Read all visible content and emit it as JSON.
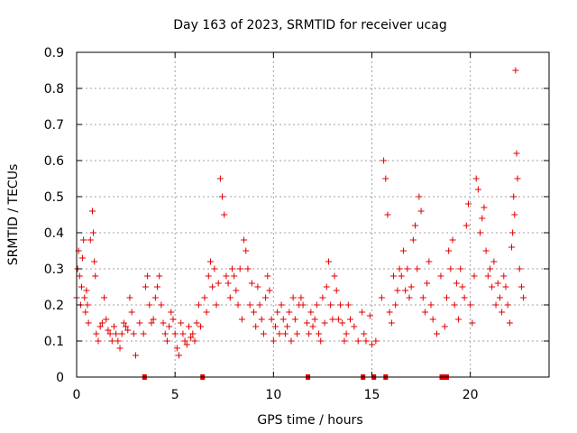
{
  "chart_data": {
    "type": "scatter",
    "title": "Day 163 of 2023, SRMTID for receiver ucag",
    "xlabel": "GPS time / hours",
    "ylabel": "SRMTID / TECUs",
    "xlim": [
      0,
      24
    ],
    "ylim": [
      0,
      0.9
    ],
    "xticks": [
      0,
      5,
      10,
      15,
      20
    ],
    "xtick_labels": [
      "0",
      "5",
      "10",
      "15",
      "20"
    ],
    "yticks": [
      0,
      0.1,
      0.2,
      0.3,
      0.4,
      0.5,
      0.6,
      0.7,
      0.8,
      0.9
    ],
    "ytick_labels": [
      "0",
      "0.1",
      "0.2",
      "0.3",
      "0.4",
      "0.5",
      "0.6",
      "0.7",
      "0.8",
      "0.9"
    ],
    "grid": true,
    "marker": "+",
    "color": "#e00000",
    "series": [
      {
        "name": "SRMTID",
        "x": [
          0.0,
          0.05,
          0.1,
          0.15,
          0.2,
          0.25,
          0.3,
          0.35,
          0.4,
          0.45,
          0.5,
          0.55,
          0.6,
          0.7,
          0.8,
          0.85,
          0.9,
          0.95,
          1.0,
          1.1,
          1.2,
          1.3,
          1.4,
          1.5,
          1.6,
          1.7,
          1.8,
          1.9,
          2.0,
          2.1,
          2.2,
          2.3,
          2.4,
          2.5,
          2.6,
          2.7,
          2.8,
          2.9,
          3.0,
          3.2,
          3.4,
          3.5,
          3.6,
          3.7,
          3.8,
          3.9,
          4.0,
          4.1,
          4.2,
          4.3,
          4.4,
          4.5,
          4.6,
          4.7,
          4.8,
          4.9,
          5.0,
          5.1,
          5.2,
          5.3,
          5.4,
          5.5,
          5.6,
          5.7,
          5.8,
          5.9,
          6.0,
          6.1,
          6.2,
          6.3,
          6.5,
          6.6,
          6.7,
          6.8,
          6.9,
          7.0,
          7.1,
          7.2,
          7.3,
          7.4,
          7.5,
          7.6,
          7.7,
          7.8,
          7.9,
          8.0,
          8.1,
          8.2,
          8.3,
          8.4,
          8.5,
          8.6,
          8.7,
          8.8,
          8.9,
          9.0,
          9.1,
          9.2,
          9.3,
          9.4,
          9.5,
          9.6,
          9.7,
          9.8,
          9.9,
          10.0,
          10.1,
          10.2,
          10.3,
          10.4,
          10.5,
          10.6,
          10.7,
          10.8,
          10.9,
          11.0,
          11.1,
          11.2,
          11.3,
          11.4,
          11.5,
          11.7,
          11.8,
          11.9,
          12.0,
          12.1,
          12.2,
          12.3,
          12.4,
          12.5,
          12.6,
          12.7,
          12.8,
          12.9,
          13.0,
          13.1,
          13.2,
          13.3,
          13.4,
          13.5,
          13.6,
          13.7,
          13.8,
          13.9,
          14.1,
          14.3,
          14.5,
          14.6,
          14.7,
          14.9,
          15.0,
          15.2,
          15.5,
          15.6,
          15.7,
          15.8,
          15.9,
          16.0,
          16.1,
          16.2,
          16.3,
          16.4,
          16.5,
          16.6,
          16.7,
          16.8,
          16.9,
          17.0,
          17.1,
          17.2,
          17.3,
          17.4,
          17.5,
          17.6,
          17.7,
          17.8,
          17.9,
          18.0,
          18.1,
          18.3,
          18.5,
          18.7,
          18.8,
          18.9,
          19.0,
          19.1,
          19.2,
          19.3,
          19.4,
          19.5,
          19.6,
          19.7,
          19.8,
          19.9,
          20.0,
          20.1,
          20.2,
          20.3,
          20.4,
          20.5,
          20.6,
          20.7,
          20.8,
          20.9,
          21.0,
          21.1,
          21.2,
          21.3,
          21.4,
          21.5,
          21.6,
          21.7,
          21.8,
          21.9,
          22.0,
          22.1,
          22.15,
          22.2,
          22.25,
          22.3,
          22.35,
          22.4,
          22.5,
          22.6,
          22.7
        ],
        "y": [
          0.22,
          0.3,
          0.35,
          0.28,
          0.2,
          0.25,
          0.33,
          0.38,
          0.22,
          0.18,
          0.24,
          0.2,
          0.15,
          0.38,
          0.46,
          0.4,
          0.32,
          0.28,
          0.12,
          0.1,
          0.14,
          0.15,
          0.22,
          0.16,
          0.13,
          0.12,
          0.1,
          0.14,
          0.12,
          0.1,
          0.08,
          0.12,
          0.15,
          0.14,
          0.13,
          0.22,
          0.18,
          0.12,
          0.06,
          0.15,
          0.12,
          0.25,
          0.28,
          0.2,
          0.15,
          0.16,
          0.22,
          0.25,
          0.28,
          0.2,
          0.15,
          0.12,
          0.1,
          0.14,
          0.18,
          0.16,
          0.12,
          0.08,
          0.06,
          0.15,
          0.12,
          0.1,
          0.09,
          0.14,
          0.11,
          0.12,
          0.1,
          0.15,
          0.2,
          0.14,
          0.22,
          0.18,
          0.28,
          0.32,
          0.25,
          0.3,
          0.2,
          0.26,
          0.55,
          0.5,
          0.45,
          0.28,
          0.26,
          0.22,
          0.3,
          0.28,
          0.24,
          0.2,
          0.3,
          0.16,
          0.38,
          0.35,
          0.3,
          0.2,
          0.26,
          0.18,
          0.14,
          0.25,
          0.2,
          0.16,
          0.12,
          0.22,
          0.28,
          0.24,
          0.16,
          0.1,
          0.14,
          0.18,
          0.12,
          0.2,
          0.16,
          0.12,
          0.14,
          0.18,
          0.1,
          0.22,
          0.16,
          0.12,
          0.2,
          0.22,
          0.2,
          0.15,
          0.12,
          0.18,
          0.14,
          0.16,
          0.2,
          0.12,
          0.1,
          0.22,
          0.15,
          0.25,
          0.32,
          0.2,
          0.16,
          0.28,
          0.24,
          0.16,
          0.2,
          0.15,
          0.1,
          0.12,
          0.2,
          0.16,
          0.14,
          0.1,
          0.18,
          0.12,
          0.1,
          0.17,
          0.09,
          0.1,
          0.22,
          0.6,
          0.55,
          0.45,
          0.18,
          0.15,
          0.28,
          0.2,
          0.24,
          0.3,
          0.28,
          0.35,
          0.24,
          0.3,
          0.22,
          0.25,
          0.38,
          0.42,
          0.3,
          0.5,
          0.46,
          0.22,
          0.18,
          0.26,
          0.32,
          0.2,
          0.16,
          0.12,
          0.28,
          0.14,
          0.22,
          0.35,
          0.3,
          0.38,
          0.2,
          0.26,
          0.16,
          0.3,
          0.25,
          0.22,
          0.42,
          0.48,
          0.2,
          0.15,
          0.28,
          0.55,
          0.52,
          0.4,
          0.44,
          0.47,
          0.35,
          0.28,
          0.3,
          0.25,
          0.32,
          0.2,
          0.26,
          0.22,
          0.18,
          0.28,
          0.25,
          0.2,
          0.15,
          0.36,
          0.4,
          0.5,
          0.45,
          0.85,
          0.62,
          0.55,
          0.3,
          0.25,
          0.22
        ]
      }
    ],
    "gap_markers_x": [
      3.45,
      6.4,
      11.75,
      14.55,
      15.1,
      15.7,
      18.55,
      18.6,
      18.65,
      18.7,
      18.75,
      18.8
    ]
  }
}
